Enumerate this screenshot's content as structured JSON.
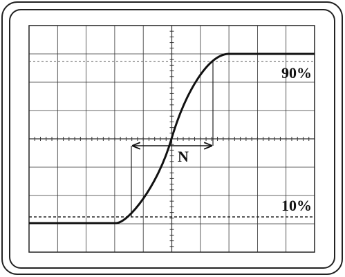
{
  "labels": {
    "upper": "90%",
    "lower": "10%",
    "interval": "N"
  }
}
